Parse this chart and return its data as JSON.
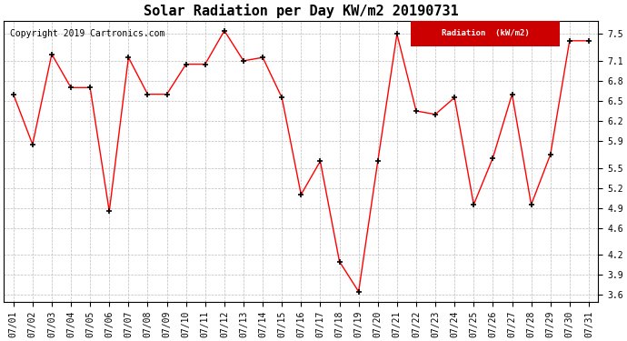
{
  "title": "Solar Radiation per Day KW/m2 20190731",
  "copyright": "Copyright 2019 Cartronics.com",
  "legend_label": "Radiation  (kW/m2)",
  "dates": [
    "07/01",
    "07/02",
    "07/03",
    "07/04",
    "07/05",
    "07/06",
    "07/07",
    "07/08",
    "07/09",
    "07/10",
    "07/11",
    "07/12",
    "07/13",
    "07/14",
    "07/15",
    "07/16",
    "07/17",
    "07/18",
    "07/19",
    "07/20",
    "07/21",
    "07/22",
    "07/23",
    "07/24",
    "07/25",
    "07/26",
    "07/27",
    "07/28",
    "07/29",
    "07/30",
    "07/31"
  ],
  "values": [
    6.6,
    5.85,
    7.2,
    6.7,
    6.7,
    4.85,
    7.15,
    6.6,
    6.6,
    7.05,
    7.05,
    7.55,
    7.1,
    7.15,
    6.55,
    5.1,
    5.6,
    4.1,
    3.65,
    5.6,
    7.5,
    6.35,
    6.3,
    6.55,
    4.95,
    5.65,
    6.6,
    4.95,
    5.7,
    7.4,
    7.4
  ],
  "ylim": [
    3.5,
    7.7
  ],
  "yticks": [
    3.6,
    3.9,
    4.2,
    4.6,
    4.9,
    5.2,
    5.5,
    5.9,
    6.2,
    6.5,
    6.8,
    7.1,
    7.5
  ],
  "line_color": "red",
  "marker": "+",
  "marker_color": "black",
  "bg_color": "#ffffff",
  "plot_bg_color": "#ffffff",
  "grid_color": "#bbbbbb",
  "legend_bg": "#cc0000",
  "legend_text_color": "#ffffff",
  "title_fontsize": 11,
  "tick_fontsize": 7,
  "copyright_fontsize": 7
}
